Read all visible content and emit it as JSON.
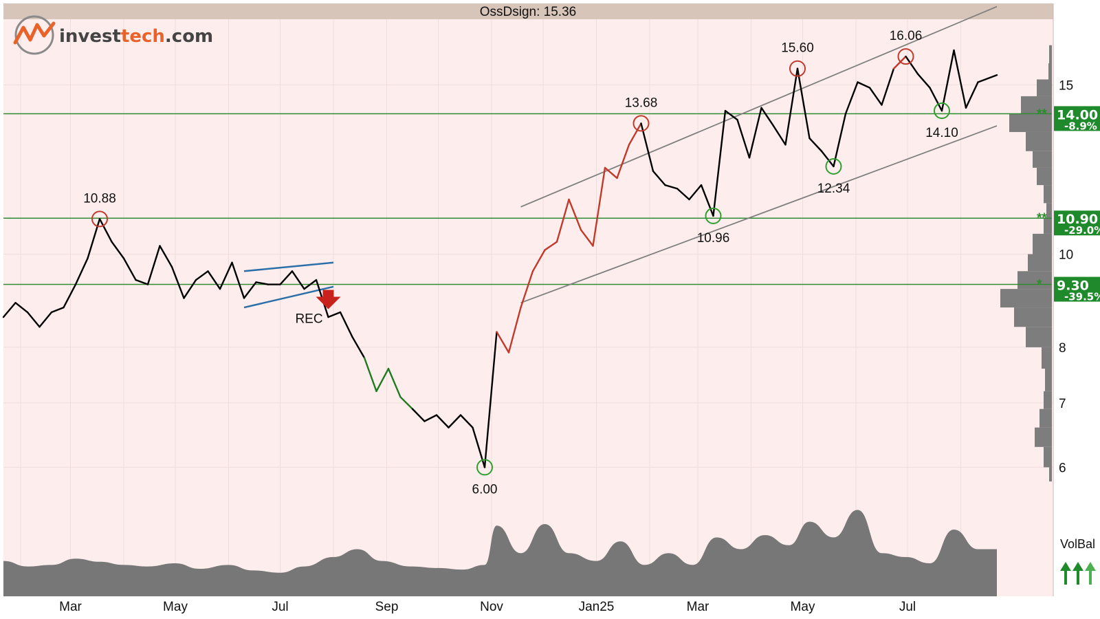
{
  "logo": {
    "part1": "invest",
    "part2": "tech",
    "part3": ".com"
  },
  "chart_data": {
    "type": "line",
    "title": "OssDsign: 15.36",
    "x_labels": [
      "Mar",
      "May",
      "Jul",
      "Sep",
      "Nov",
      "Jan25",
      "Mar",
      "May",
      "Jul"
    ],
    "y_ticks": [
      6,
      7,
      8,
      10,
      15
    ],
    "y_scale": "log",
    "ylim": [
      5.8,
      17.5
    ],
    "x_range": [
      "2024-01-22",
      "2025-08-22"
    ],
    "price": [
      [
        "2024-01-22",
        8.6
      ],
      [
        "2024-01-29",
        8.9
      ],
      [
        "2024-02-05",
        8.7
      ],
      [
        "2024-02-12",
        8.4
      ],
      [
        "2024-02-19",
        8.7
      ],
      [
        "2024-02-26",
        8.8
      ],
      [
        "2024-03-04",
        9.3
      ],
      [
        "2024-03-11",
        9.9
      ],
      [
        "2024-03-18",
        10.88
      ],
      [
        "2024-03-25",
        10.3
      ],
      [
        "2024-04-01",
        9.9
      ],
      [
        "2024-04-08",
        9.4
      ],
      [
        "2024-04-15",
        9.3
      ],
      [
        "2024-04-22",
        10.2
      ],
      [
        "2024-04-29",
        9.7
      ],
      [
        "2024-05-06",
        9.0
      ],
      [
        "2024-05-13",
        9.4
      ],
      [
        "2024-05-20",
        9.6
      ],
      [
        "2024-05-27",
        9.2
      ],
      [
        "2024-06-03",
        9.8
      ],
      [
        "2024-06-10",
        9.0
      ],
      [
        "2024-06-17",
        9.35
      ],
      [
        "2024-06-24",
        9.3
      ],
      [
        "2024-07-01",
        9.3
      ],
      [
        "2024-07-08",
        9.6
      ],
      [
        "2024-07-15",
        9.2
      ],
      [
        "2024-07-22",
        9.4
      ],
      [
        "2024-07-29",
        8.6
      ],
      [
        "2024-08-05",
        8.7
      ],
      [
        "2024-08-12",
        8.2
      ],
      [
        "2024-08-19",
        7.8
      ],
      [
        "2024-08-26",
        7.2
      ],
      [
        "2024-09-02",
        7.6
      ],
      [
        "2024-09-09",
        7.1
      ],
      [
        "2024-09-16",
        6.9
      ],
      [
        "2024-09-23",
        6.7
      ],
      [
        "2024-09-30",
        6.8
      ],
      [
        "2024-10-07",
        6.6
      ],
      [
        "2024-10-14",
        6.8
      ],
      [
        "2024-10-21",
        6.6
      ],
      [
        "2024-10-28",
        6.0
      ],
      [
        "2024-11-04",
        8.3
      ],
      [
        "2024-11-11",
        7.9
      ],
      [
        "2024-11-18",
        8.8
      ],
      [
        "2024-11-25",
        9.6
      ],
      [
        "2024-12-02",
        10.1
      ],
      [
        "2024-12-09",
        10.3
      ],
      [
        "2024-12-16",
        11.4
      ],
      [
        "2024-12-23",
        10.6
      ],
      [
        "2024-12-30",
        10.2
      ],
      [
        "2025-01-06",
        12.3
      ],
      [
        "2025-01-13",
        12.0
      ],
      [
        "2025-01-20",
        13.0
      ],
      [
        "2025-01-27",
        13.68
      ],
      [
        "2025-02-03",
        12.2
      ],
      [
        "2025-02-10",
        11.8
      ],
      [
        "2025-02-17",
        11.7
      ],
      [
        "2025-02-24",
        11.4
      ],
      [
        "2025-03-03",
        11.8
      ],
      [
        "2025-03-10",
        10.96
      ],
      [
        "2025-03-17",
        14.1
      ],
      [
        "2025-03-24",
        13.8
      ],
      [
        "2025-03-31",
        12.6
      ],
      [
        "2025-04-07",
        14.2
      ],
      [
        "2025-04-14",
        13.6
      ],
      [
        "2025-04-21",
        13.0
      ],
      [
        "2025-04-28",
        15.6
      ],
      [
        "2025-05-05",
        13.2
      ],
      [
        "2025-05-12",
        12.8
      ],
      [
        "2025-05-19",
        12.34
      ],
      [
        "2025-05-26",
        14.0
      ],
      [
        "2025-06-02",
        15.1
      ],
      [
        "2025-06-09",
        14.9
      ],
      [
        "2025-06-16",
        14.3
      ],
      [
        "2025-06-23",
        15.6
      ],
      [
        "2025-06-30",
        16.06
      ],
      [
        "2025-07-07",
        15.4
      ],
      [
        "2025-07-14",
        14.9
      ],
      [
        "2025-07-21",
        14.1
      ],
      [
        "2025-07-28",
        16.3
      ],
      [
        "2025-08-04",
        14.2
      ],
      [
        "2025-08-11",
        15.1
      ],
      [
        "2025-08-22",
        15.36
      ]
    ],
    "highs": [
      {
        "date": "2024-03-18",
        "value": 10.88,
        "label": "10.88"
      },
      {
        "date": "2025-01-27",
        "value": 13.68,
        "label": "13.68"
      },
      {
        "date": "2025-04-28",
        "value": 15.6,
        "label": "15.60"
      },
      {
        "date": "2025-06-30",
        "value": 16.06,
        "label": "16.06"
      }
    ],
    "lows": [
      {
        "date": "2024-10-28",
        "value": 6.0,
        "label": "6.00"
      },
      {
        "date": "2025-03-10",
        "value": 10.96,
        "label": "10.96"
      },
      {
        "date": "2025-05-19",
        "value": 12.34,
        "label": "12.34"
      },
      {
        "date": "2025-07-21",
        "value": 14.1,
        "label": "14.10"
      }
    ],
    "levels": [
      {
        "value": 14.0,
        "label": "14.00",
        "pct": "-8.9%"
      },
      {
        "value": 10.9,
        "label": "10.90",
        "pct": "-29.0%"
      },
      {
        "value": 9.3,
        "label": "9.30",
        "pct": "-39.5%"
      }
    ],
    "signal": {
      "label": "REC",
      "date": "2024-07-29",
      "value": 9.0
    },
    "channel": {
      "upper": [
        [
          "2024-11-18",
          11.2
        ],
        [
          "2025-08-22",
          18.1
        ]
      ],
      "lower": [
        [
          "2024-11-18",
          8.9
        ],
        [
          "2025-08-22",
          13.6
        ]
      ]
    },
    "rect_pattern": {
      "upper": [
        [
          "2024-06-10",
          9.6
        ],
        [
          "2024-08-01",
          9.8
        ]
      ],
      "lower": [
        [
          "2024-06-10",
          8.8
        ],
        [
          "2024-08-01",
          9.25
        ]
      ]
    },
    "colored_segments": [
      {
        "from": "2024-08-19",
        "to": "2024-09-16",
        "color": "#1f7a1f"
      },
      {
        "from": "2024-11-04",
        "to": "2025-01-27",
        "color": "#c0392b"
      },
      {
        "from": "2025-06-23",
        "to": "2025-06-30",
        "color": "#c0392b"
      }
    ],
    "volume": [
      [
        "2024-01-22",
        45
      ],
      [
        "2024-02-05",
        38
      ],
      [
        "2024-02-19",
        40
      ],
      [
        "2024-03-04",
        48
      ],
      [
        "2024-03-18",
        44
      ],
      [
        "2024-04-01",
        40
      ],
      [
        "2024-04-15",
        38
      ],
      [
        "2024-05-01",
        42
      ],
      [
        "2024-05-15",
        35
      ],
      [
        "2024-06-01",
        40
      ],
      [
        "2024-06-15",
        33
      ],
      [
        "2024-07-01",
        30
      ],
      [
        "2024-07-15",
        38
      ],
      [
        "2024-08-01",
        50
      ],
      [
        "2024-08-15",
        60
      ],
      [
        "2024-08-29",
        45
      ],
      [
        "2024-09-15",
        38
      ],
      [
        "2024-10-01",
        36
      ],
      [
        "2024-10-15",
        34
      ],
      [
        "2024-10-28",
        40
      ],
      [
        "2024-11-04",
        90
      ],
      [
        "2024-11-18",
        55
      ],
      [
        "2024-12-02",
        92
      ],
      [
        "2024-12-16",
        55
      ],
      [
        "2025-01-01",
        45
      ],
      [
        "2025-01-15",
        70
      ],
      [
        "2025-01-29",
        40
      ],
      [
        "2025-02-12",
        55
      ],
      [
        "2025-02-26",
        40
      ],
      [
        "2025-03-12",
        75
      ],
      [
        "2025-03-26",
        60
      ],
      [
        "2025-04-09",
        78
      ],
      [
        "2025-04-23",
        65
      ],
      [
        "2025-05-05",
        95
      ],
      [
        "2025-05-19",
        75
      ],
      [
        "2025-06-02",
        110
      ],
      [
        "2025-06-16",
        55
      ],
      [
        "2025-06-30",
        50
      ],
      [
        "2025-07-14",
        42
      ],
      [
        "2025-07-28",
        85
      ],
      [
        "2025-08-11",
        60
      ],
      [
        "2025-08-22",
        60
      ]
    ],
    "profile": [
      {
        "price": 16.5,
        "w": 4
      },
      {
        "price": 15.8,
        "w": 5
      },
      {
        "price": 15.2,
        "w": 22
      },
      {
        "price": 14.6,
        "w": 45
      },
      {
        "price": 14.0,
        "w": 62
      },
      {
        "price": 13.4,
        "w": 38
      },
      {
        "price": 12.8,
        "w": 28
      },
      {
        "price": 12.3,
        "w": 22
      },
      {
        "price": 11.8,
        "w": 12
      },
      {
        "price": 11.3,
        "w": 8
      },
      {
        "price": 10.9,
        "w": 12
      },
      {
        "price": 10.5,
        "w": 28
      },
      {
        "price": 10.0,
        "w": 35
      },
      {
        "price": 9.6,
        "w": 50
      },
      {
        "price": 9.2,
        "w": 75
      },
      {
        "price": 8.8,
        "w": 55
      },
      {
        "price": 8.4,
        "w": 38
      },
      {
        "price": 8.0,
        "w": 15
      },
      {
        "price": 7.6,
        "w": 10
      },
      {
        "price": 7.2,
        "w": 12
      },
      {
        "price": 6.9,
        "w": 18
      },
      {
        "price": 6.6,
        "w": 25
      },
      {
        "price": 6.3,
        "w": 12
      },
      {
        "price": 6.0,
        "w": 4
      }
    ],
    "volume_label": "VolBal",
    "grid": true,
    "colors": {
      "background": "#fdeeed",
      "title_bar": "#d8c5b9",
      "price": "#000000",
      "level": "#2e8b2e",
      "level_box": "#1f8a2c",
      "channel": "#7f7f7f",
      "pattern": "#2a6fa8",
      "high_circle": "#c0392b",
      "low_circle": "#2e9e2e",
      "volume": "#777777",
      "profile": "#7d7d7d",
      "signal_arrow": "#c8221c"
    }
  }
}
